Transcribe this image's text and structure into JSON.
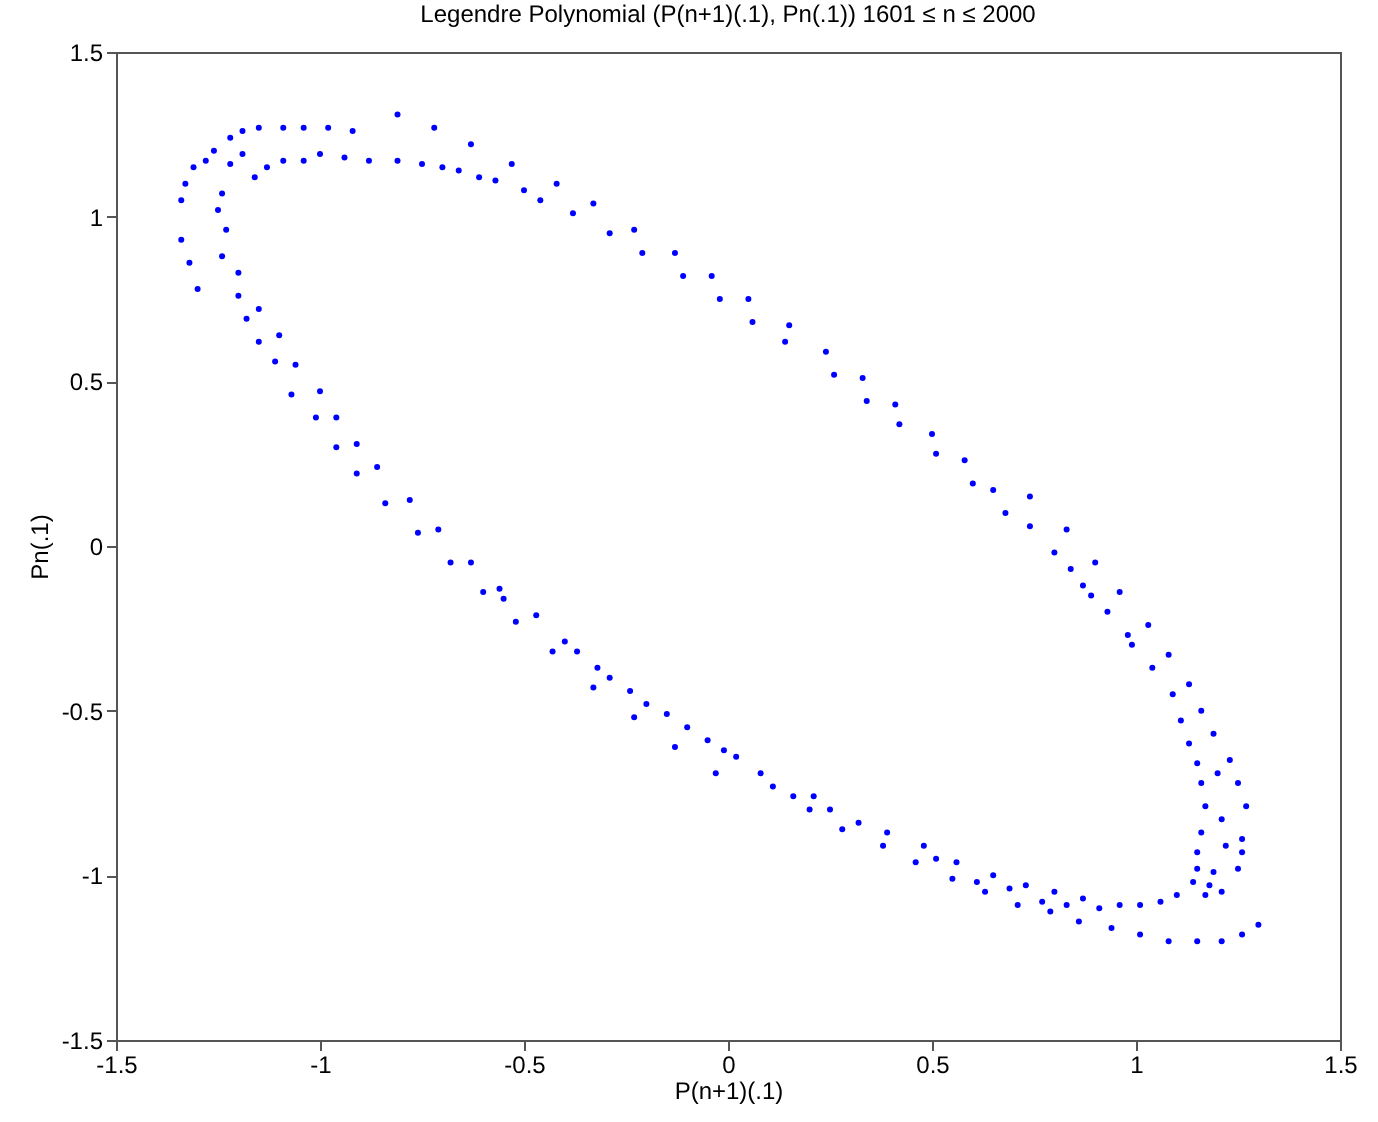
{
  "chart_data": {
    "type": "scatter",
    "title": "Legendre Polynomial (P(n+1)(.1), Pn(.1))    1601 ≤ n ≤ 2000",
    "xlabel": "P(n+1)(.1)",
    "ylabel": "Pn(.1)",
    "xlim": [
      -1.5,
      1.5
    ],
    "ylim": [
      -1.5,
      1.5
    ],
    "xticks": [
      -1.5,
      -1,
      -0.5,
      0,
      0.5,
      1,
      1.5
    ],
    "yticks": [
      -1.5,
      -1,
      -0.5,
      0,
      0.5,
      1,
      1.5
    ],
    "marker": "circle",
    "series": [
      {
        "color": "#0000ff",
        "x": [
          -1.34,
          -1.34,
          -1.32,
          -1.3,
          -1.33,
          -1.31,
          -1.28,
          -1.26,
          -1.22,
          -1.19,
          -1.15,
          -1.09,
          -1.04,
          -0.98,
          -0.92,
          -0.81,
          -0.72,
          -0.63,
          -0.53,
          -0.42,
          -0.33,
          -0.23,
          -0.13,
          -0.04,
          -1.24,
          -1.25,
          -1.23,
          -1.24,
          -1.2,
          -1.2,
          -1.18,
          -1.15,
          -1.15,
          -1.1,
          -1.11,
          -1.06,
          -1.07,
          -1.0,
          -1.01,
          -0.96,
          -0.96,
          -0.91,
          -0.91,
          -0.86,
          -0.84,
          -0.78,
          -0.76,
          -0.71,
          -1.22,
          -1.19,
          -1.16,
          -1.13,
          -1.09,
          -1.04,
          -1.0,
          -0.94,
          -0.88,
          -0.81,
          -0.75,
          -0.7,
          -0.66,
          -0.61,
          -0.57,
          -0.5,
          -0.46,
          -0.38,
          -0.29,
          -0.21,
          -0.11,
          -0.02,
          0.05,
          0.06,
          0.15,
          0.14,
          0.24,
          0.26,
          0.33,
          0.34,
          0.41,
          0.42,
          0.5,
          0.51,
          0.58,
          0.6,
          0.65,
          0.68,
          0.74,
          0.74,
          0.83,
          0.8,
          -0.68,
          -0.63,
          -0.6,
          -0.56,
          -0.55,
          -0.52,
          -0.47,
          -0.43,
          -0.4,
          -0.37,
          -0.33,
          -0.32,
          -0.29,
          -0.23,
          -0.24,
          -0.2,
          -0.15,
          -0.13,
          -0.1,
          -0.05,
          -0.03,
          -0.01,
          0.02,
          0.08,
          0.11,
          0.16,
          0.2,
          0.21,
          0.25,
          0.28,
          0.32,
          0.38,
          0.39,
          0.46,
          0.48,
          0.51,
          0.55,
          0.56,
          0.61,
          0.63,
          0.65,
          0.69,
          0.71,
          0.73,
          0.77,
          0.79,
          0.8,
          0.83,
          0.86,
          0.87,
          0.91,
          0.94,
          0.96,
          1.01,
          1.01,
          1.06,
          1.08,
          1.1,
          1.15,
          1.21,
          1.26,
          1.3,
          1.27,
          1.26,
          1.26,
          1.25,
          1.25,
          1.23,
          1.19,
          1.16,
          1.13,
          1.08,
          1.03,
          0.96,
          0.9,
          1.15,
          1.16,
          1.17,
          1.16,
          1.15,
          1.15,
          1.14,
          1.13,
          1.11,
          1.09,
          1.04,
          0.99,
          0.98,
          0.93,
          0.89,
          0.87,
          0.84,
          1.2,
          1.21,
          1.22,
          1.19,
          1.18,
          1.21,
          1.17
        ],
        "values": [
          1.05,
          0.93,
          0.86,
          0.78,
          1.1,
          1.15,
          1.17,
          1.2,
          1.24,
          1.26,
          1.27,
          1.27,
          1.27,
          1.27,
          1.26,
          1.31,
          1.27,
          1.22,
          1.16,
          1.1,
          1.04,
          0.96,
          0.89,
          0.82,
          1.07,
          1.02,
          0.96,
          0.88,
          0.83,
          0.76,
          0.69,
          0.72,
          0.62,
          0.64,
          0.56,
          0.55,
          0.46,
          0.47,
          0.39,
          0.39,
          0.3,
          0.31,
          0.22,
          0.24,
          0.13,
          0.14,
          0.04,
          0.05,
          1.16,
          1.19,
          1.12,
          1.15,
          1.17,
          1.17,
          1.19,
          1.18,
          1.17,
          1.17,
          1.16,
          1.15,
          1.14,
          1.12,
          1.11,
          1.08,
          1.05,
          1.01,
          0.95,
          0.89,
          0.82,
          0.75,
          0.75,
          0.68,
          0.67,
          0.62,
          0.59,
          0.52,
          0.51,
          0.44,
          0.43,
          0.37,
          0.34,
          0.28,
          0.26,
          0.19,
          0.17,
          0.1,
          0.15,
          0.06,
          0.05,
          -0.02,
          -0.05,
          -0.05,
          -0.14,
          -0.13,
          -0.16,
          -0.23,
          -0.21,
          -0.32,
          -0.29,
          -0.32,
          -0.43,
          -0.37,
          -0.4,
          -0.52,
          -0.44,
          -0.48,
          -0.51,
          -0.61,
          -0.55,
          -0.59,
          -0.69,
          -0.62,
          -0.64,
          -0.69,
          -0.73,
          -0.76,
          -0.8,
          -0.76,
          -0.8,
          -0.86,
          -0.84,
          -0.91,
          -0.87,
          -0.96,
          -0.91,
          -0.95,
          -1.01,
          -0.96,
          -1.02,
          -1.05,
          -1.0,
          -1.04,
          -1.09,
          -1.03,
          -1.08,
          -1.11,
          -1.05,
          -1.09,
          -1.14,
          -1.07,
          -1.1,
          -1.16,
          -1.09,
          -1.09,
          -1.18,
          -1.08,
          -1.2,
          -1.06,
          -1.2,
          -1.2,
          -1.18,
          -1.15,
          -0.79,
          -0.89,
          -0.93,
          -0.98,
          -0.72,
          -0.65,
          -0.57,
          -0.5,
          -0.42,
          -0.33,
          -0.24,
          -0.14,
          -0.05,
          -0.66,
          -0.72,
          -0.79,
          -0.87,
          -0.93,
          -0.98,
          -1.02,
          -0.6,
          -0.53,
          -0.45,
          -0.37,
          -0.3,
          -0.27,
          -0.2,
          -0.15,
          -0.12,
          -0.07,
          -0.69,
          -0.83,
          -0.91,
          -0.99,
          -1.03,
          -1.05,
          -1.06
        ]
      }
    ]
  }
}
